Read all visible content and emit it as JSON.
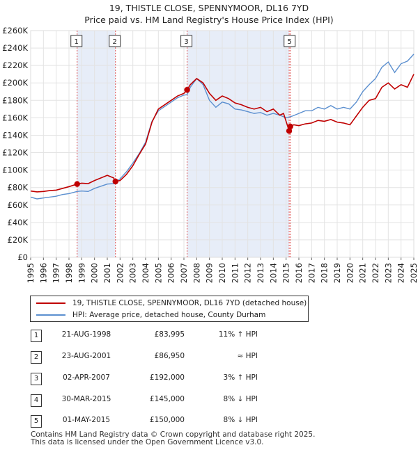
{
  "title_line1": "19, THISTLE CLOSE, SPENNYMOOR, DL16 7YD",
  "title_line2": "Price paid vs. HM Land Registry's House Price Index (HPI)",
  "colors": {
    "property": "#c00000",
    "hpi": "#5b8fcf",
    "shade": "#dde6f5",
    "marker_line": "#e05555"
  },
  "chart_data": {
    "type": "line",
    "ylim": [
      0,
      260000
    ],
    "xlim": [
      1995,
      2025
    ],
    "yticks": [
      0,
      20000,
      40000,
      60000,
      80000,
      100000,
      120000,
      140000,
      160000,
      180000,
      200000,
      220000,
      240000,
      260000
    ],
    "ytick_labels": [
      "£0",
      "£20K",
      "£40K",
      "£60K",
      "£80K",
      "£100K",
      "£120K",
      "£140K",
      "£160K",
      "£180K",
      "£200K",
      "£220K",
      "£240K",
      "£260K"
    ],
    "xtick_labels": [
      "1995",
      "1996",
      "1997",
      "1998",
      "1999",
      "2000",
      "2001",
      "2002",
      "2003",
      "2004",
      "2005",
      "2006",
      "2007",
      "2008",
      "2009",
      "2010",
      "2011",
      "2012",
      "2013",
      "2014",
      "2015",
      "2016",
      "2017",
      "2018",
      "2019",
      "2020",
      "2021",
      "2022",
      "2023",
      "2024",
      "2025"
    ],
    "series": [
      {
        "name": "19, THISTLE CLOSE, SPENNYMOOR, DL16 7YD (detached house)",
        "points": [
          [
            1995.0,
            76000
          ],
          [
            1995.5,
            75000
          ],
          [
            1996.0,
            75500
          ],
          [
            1996.5,
            76500
          ],
          [
            1997.0,
            77000
          ],
          [
            1997.5,
            79000
          ],
          [
            1998.0,
            81000
          ],
          [
            1998.64,
            83995
          ],
          [
            1999.0,
            85000
          ],
          [
            1999.5,
            84500
          ],
          [
            2000.0,
            88000
          ],
          [
            2000.5,
            91000
          ],
          [
            2001.0,
            94000
          ],
          [
            2001.5,
            91000
          ],
          [
            2001.64,
            86950
          ],
          [
            2002.0,
            88000
          ],
          [
            2002.5,
            95000
          ],
          [
            2003.0,
            105000
          ],
          [
            2003.5,
            118000
          ],
          [
            2004.0,
            130000
          ],
          [
            2004.5,
            155000
          ],
          [
            2005.0,
            170000
          ],
          [
            2005.5,
            175000
          ],
          [
            2006.0,
            180000
          ],
          [
            2006.5,
            185000
          ],
          [
            2007.0,
            188000
          ],
          [
            2007.25,
            192000
          ],
          [
            2007.5,
            198000
          ],
          [
            2008.0,
            205000
          ],
          [
            2008.5,
            200000
          ],
          [
            2009.0,
            188000
          ],
          [
            2009.5,
            180000
          ],
          [
            2010.0,
            185000
          ],
          [
            2010.5,
            182000
          ],
          [
            2011.0,
            177000
          ],
          [
            2011.5,
            175000
          ],
          [
            2012.0,
            172000
          ],
          [
            2012.5,
            170000
          ],
          [
            2013.0,
            172000
          ],
          [
            2013.5,
            167000
          ],
          [
            2014.0,
            170000
          ],
          [
            2014.5,
            163000
          ],
          [
            2014.8,
            165000
          ],
          [
            2015.24,
            145000
          ],
          [
            2015.33,
            150000
          ],
          [
            2015.6,
            152000
          ],
          [
            2016.0,
            151000
          ],
          [
            2016.5,
            153000
          ],
          [
            2017.0,
            154000
          ],
          [
            2017.5,
            157000
          ],
          [
            2018.0,
            156000
          ],
          [
            2018.5,
            158000
          ],
          [
            2019.0,
            155000
          ],
          [
            2019.5,
            154000
          ],
          [
            2020.0,
            152000
          ],
          [
            2020.5,
            162000
          ],
          [
            2021.0,
            172000
          ],
          [
            2021.5,
            180000
          ],
          [
            2022.0,
            182000
          ],
          [
            2022.5,
            195000
          ],
          [
            2023.0,
            200000
          ],
          [
            2023.5,
            193000
          ],
          [
            2024.0,
            198000
          ],
          [
            2024.5,
            195000
          ],
          [
            2025.0,
            210000
          ]
        ]
      },
      {
        "name": "HPI: Average price, detached house, County Durham",
        "points": [
          [
            1995.0,
            69000
          ],
          [
            1995.5,
            67000
          ],
          [
            1996.0,
            68000
          ],
          [
            1996.5,
            69000
          ],
          [
            1997.0,
            70000
          ],
          [
            1997.5,
            72000
          ],
          [
            1998.0,
            73000
          ],
          [
            1998.64,
            75500
          ],
          [
            1999.0,
            76000
          ],
          [
            1999.5,
            75500
          ],
          [
            2000.0,
            79000
          ],
          [
            2000.5,
            81500
          ],
          [
            2001.0,
            84000
          ],
          [
            2001.5,
            84500
          ],
          [
            2002.0,
            90000
          ],
          [
            2002.5,
            98000
          ],
          [
            2003.0,
            108000
          ],
          [
            2003.5,
            119000
          ],
          [
            2004.0,
            132000
          ],
          [
            2004.5,
            156000
          ],
          [
            2005.0,
            168000
          ],
          [
            2005.5,
            173000
          ],
          [
            2006.0,
            178000
          ],
          [
            2006.5,
            183000
          ],
          [
            2007.0,
            186000
          ],
          [
            2007.25,
            186500
          ],
          [
            2007.5,
            195000
          ],
          [
            2008.0,
            205000
          ],
          [
            2008.5,
            198000
          ],
          [
            2009.0,
            180000
          ],
          [
            2009.5,
            172000
          ],
          [
            2010.0,
            178000
          ],
          [
            2010.5,
            176000
          ],
          [
            2011.0,
            170000
          ],
          [
            2011.5,
            169000
          ],
          [
            2012.0,
            167000
          ],
          [
            2012.5,
            165000
          ],
          [
            2013.0,
            166000
          ],
          [
            2013.5,
            163000
          ],
          [
            2014.0,
            165000
          ],
          [
            2014.5,
            163000
          ],
          [
            2015.0,
            160000
          ],
          [
            2015.5,
            162000
          ],
          [
            2016.0,
            165000
          ],
          [
            2016.5,
            168000
          ],
          [
            2017.0,
            168000
          ],
          [
            2017.5,
            172000
          ],
          [
            2018.0,
            170000
          ],
          [
            2018.5,
            174000
          ],
          [
            2019.0,
            170000
          ],
          [
            2019.5,
            172000
          ],
          [
            2020.0,
            170000
          ],
          [
            2020.5,
            178000
          ],
          [
            2021.0,
            190000
          ],
          [
            2021.5,
            198000
          ],
          [
            2022.0,
            205000
          ],
          [
            2022.5,
            218000
          ],
          [
            2023.0,
            224000
          ],
          [
            2023.5,
            212000
          ],
          [
            2024.0,
            222000
          ],
          [
            2024.5,
            225000
          ],
          [
            2025.0,
            233000
          ]
        ]
      }
    ],
    "sales": [
      {
        "num": "1",
        "year": 1998.64,
        "price": 83995
      },
      {
        "num": "2",
        "year": 2001.64,
        "price": 86950
      },
      {
        "num": "3",
        "year": 2007.25,
        "price": 192000
      },
      {
        "num": "4",
        "year": 2015.24,
        "price": 145000
      },
      {
        "num": "5",
        "year": 2015.33,
        "price": 150000
      }
    ],
    "marker_labels": [
      {
        "num": "1",
        "year": 1998.64
      },
      {
        "num": "2",
        "year": 2001.64
      },
      {
        "num": "3",
        "year": 2007.25
      },
      {
        "num": "5",
        "year": 2015.33
      }
    ],
    "shaded_ranges": [
      [
        1998.64,
        2001.64
      ],
      [
        2007.25,
        2015.24
      ]
    ]
  },
  "legend": {
    "property": "19, THISTLE CLOSE, SPENNYMOOR, DL16 7YD (detached house)",
    "hpi": "HPI: Average price, detached house, County Durham"
  },
  "table": [
    {
      "num": "1",
      "date": "21-AUG-1998",
      "price": "£83,995",
      "hpi": "11% ↑ HPI"
    },
    {
      "num": "2",
      "date": "23-AUG-2001",
      "price": "£86,950",
      "hpi": "≈ HPI"
    },
    {
      "num": "3",
      "date": "02-APR-2007",
      "price": "£192,000",
      "hpi": "3% ↑ HPI"
    },
    {
      "num": "4",
      "date": "30-MAR-2015",
      "price": "£145,000",
      "hpi": "8% ↓ HPI"
    },
    {
      "num": "5",
      "date": "01-MAY-2015",
      "price": "£150,000",
      "hpi": "8% ↓ HPI"
    }
  ],
  "footer_line1": "Contains HM Land Registry data © Crown copyright and database right 2025.",
  "footer_line2": "This data is licensed under the Open Government Licence v3.0."
}
